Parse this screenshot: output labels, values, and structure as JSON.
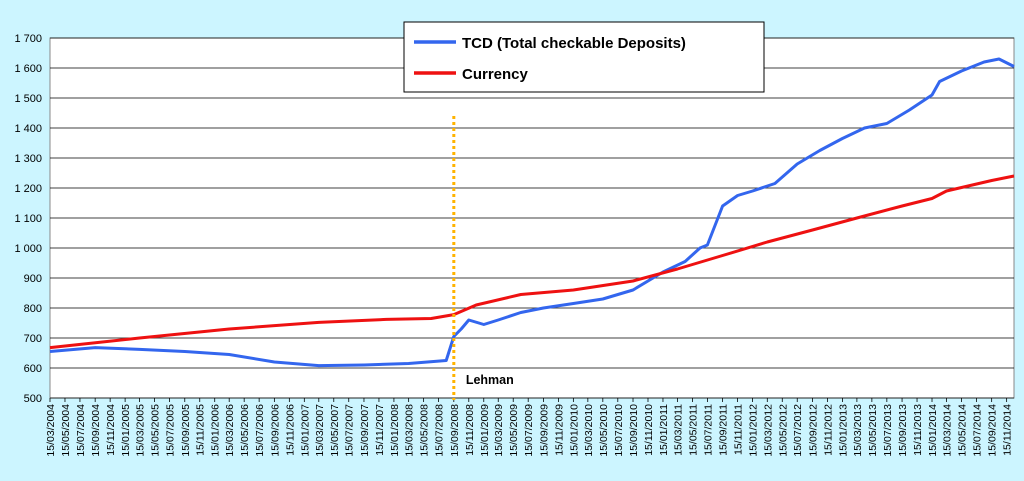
{
  "chart_data": {
    "type": "line",
    "title": "",
    "xlabel": "",
    "ylabel": "",
    "ylim": [
      500,
      1700
    ],
    "y_ticks": [
      "500",
      "600",
      "700",
      "800",
      "900",
      "1 000",
      "1 100",
      "1 200",
      "1 300",
      "1 400",
      "1 500",
      "1 600",
      "1 700"
    ],
    "y_tick_values": [
      500,
      600,
      700,
      800,
      900,
      1000,
      1100,
      1200,
      1300,
      1400,
      1500,
      1600,
      1700
    ],
    "x_range": [
      "2004-03-15",
      "2014-12-15"
    ],
    "x_tick_labels": [
      "15/03/2004",
      "15/05/2004",
      "15/07/2004",
      "15/09/2004",
      "15/11/2004",
      "15/01/2005",
      "15/03/2005",
      "15/05/2005",
      "15/07/2005",
      "15/09/2005",
      "15/11/2005",
      "15/01/2006",
      "15/03/2006",
      "15/05/2006",
      "15/07/2006",
      "15/09/2006",
      "15/11/2006",
      "15/01/2007",
      "15/03/2007",
      "15/05/2007",
      "15/07/2007",
      "15/09/2007",
      "15/11/2007",
      "15/01/2008",
      "15/03/2008",
      "15/05/2008",
      "15/07/2008",
      "15/09/2008",
      "15/11/2008",
      "15/01/2009",
      "15/03/2009",
      "15/05/2009",
      "15/07/2009",
      "15/09/2009",
      "15/11/2009",
      "15/01/2010",
      "15/03/2010",
      "15/05/2010",
      "15/07/2010",
      "15/09/2010",
      "15/11/2010",
      "15/01/2011",
      "15/03/2011",
      "15/05/2011",
      "15/07/2011",
      "15/09/2011",
      "15/11/2011",
      "15/01/2012",
      "15/03/2012",
      "15/05/2012",
      "15/07/2012",
      "15/09/2012",
      "15/11/2012",
      "15/01/2013",
      "15/03/2013",
      "15/05/2013",
      "15/07/2013",
      "15/09/2013",
      "15/11/2013",
      "15/01/2014",
      "15/03/2014",
      "15/05/2014",
      "15/07/2014",
      "15/09/2014",
      "15/11/2014"
    ],
    "grid": "horizontal",
    "legend_position": "top-center",
    "series": [
      {
        "name": "TCD (Total checkable Deposits)",
        "color": "#3366ee",
        "x": [
          "2004-03-15",
          "2004-09-15",
          "2005-03-15",
          "2005-09-15",
          "2006-03-15",
          "2006-09-15",
          "2007-03-15",
          "2007-09-15",
          "2008-03-15",
          "2008-08-15",
          "2008-09-15",
          "2008-10-15",
          "2008-11-15",
          "2009-01-15",
          "2009-03-15",
          "2009-06-15",
          "2009-09-15",
          "2010-01-15",
          "2010-05-15",
          "2010-09-15",
          "2011-01-15",
          "2011-04-15",
          "2011-06-15",
          "2011-07-15",
          "2011-09-15",
          "2011-11-15",
          "2012-01-15",
          "2012-04-15",
          "2012-07-15",
          "2012-10-15",
          "2013-01-15",
          "2013-04-15",
          "2013-07-15",
          "2013-10-15",
          "2014-01-15",
          "2014-02-15",
          "2014-05-15",
          "2014-08-15",
          "2014-10-15",
          "2014-12-15"
        ],
        "y": [
          655,
          668,
          662,
          655,
          645,
          620,
          608,
          610,
          615,
          625,
          705,
          730,
          760,
          745,
          760,
          785,
          800,
          815,
          830,
          860,
          920,
          955,
          1000,
          1010,
          1140,
          1175,
          1190,
          1215,
          1280,
          1325,
          1365,
          1400,
          1415,
          1460,
          1510,
          1555,
          1590,
          1620,
          1630,
          1605
        ]
      },
      {
        "name": "Currency",
        "color": "#ee1111",
        "x": [
          "2004-03-15",
          "2005-03-15",
          "2006-03-15",
          "2007-03-15",
          "2007-12-15",
          "2008-06-15",
          "2008-09-15",
          "2008-12-15",
          "2009-06-15",
          "2010-01-15",
          "2010-09-15",
          "2011-03-15",
          "2011-09-15",
          "2012-03-15",
          "2012-09-15",
          "2013-03-15",
          "2013-09-15",
          "2014-01-15",
          "2014-03-15",
          "2014-09-15",
          "2014-12-15"
        ],
        "y": [
          668,
          700,
          730,
          752,
          762,
          765,
          778,
          810,
          845,
          860,
          890,
          930,
          975,
          1020,
          1060,
          1100,
          1140,
          1165,
          1190,
          1225,
          1240
        ]
      }
    ],
    "annotations": [
      {
        "text": "Lehman",
        "x": "2008-09-15",
        "line_color": "#ffb300"
      }
    ]
  }
}
